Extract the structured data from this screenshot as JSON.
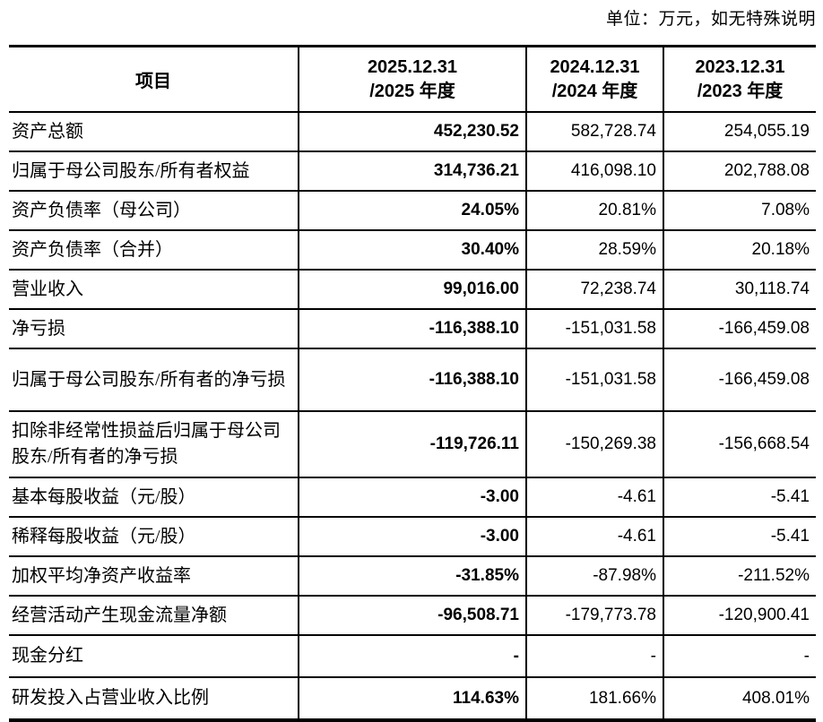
{
  "unit_note": "单位：万元，如无特殊说明",
  "colors": {
    "text": "#000000",
    "background": "#ffffff",
    "border": "#000000"
  },
  "table": {
    "columns": [
      {
        "label": "项目"
      },
      {
        "line1": "2025.12.31",
        "line2": "/2025 年度"
      },
      {
        "line1": "2024.12.31",
        "line2": "/2024 年度"
      },
      {
        "line1": "2023.12.31",
        "line2": "/2023 年度"
      }
    ],
    "rows": [
      {
        "label": "资产总额",
        "values": [
          "452,230.52",
          "582,728.74",
          "254,055.19"
        ]
      },
      {
        "label": "归属于母公司股东/所有者权益",
        "values": [
          "314,736.21",
          "416,098.10",
          "202,788.08"
        ]
      },
      {
        "label": "资产负债率（母公司）",
        "values": [
          "24.05%",
          "20.81%",
          "7.08%"
        ]
      },
      {
        "label": "资产负债率（合并）",
        "values": [
          "30.40%",
          "28.59%",
          "20.18%"
        ]
      },
      {
        "label": "营业收入",
        "values": [
          "99,016.00",
          "72,238.74",
          "30,118.74"
        ]
      },
      {
        "label": "净亏损",
        "values": [
          "-116,388.10",
          "-151,031.58",
          "-166,459.08"
        ]
      },
      {
        "label": "归属于母公司股东/所有者的净亏损",
        "values": [
          "-116,388.10",
          "-151,031.58",
          "-166,459.08"
        ]
      },
      {
        "label": "扣除非经常性损益后归属于母公司股东/所有者的净亏损",
        "values": [
          "-119,726.11",
          "-150,269.38",
          "-156,668.54"
        ]
      },
      {
        "label": "基本每股收益（元/股）",
        "values": [
          "-3.00",
          "-4.61",
          "-5.41"
        ]
      },
      {
        "label": "稀释每股收益（元/股）",
        "values": [
          "-3.00",
          "-4.61",
          "-5.41"
        ]
      },
      {
        "label": "加权平均净资产收益率",
        "values": [
          "-31.85%",
          "-87.98%",
          "-211.52%"
        ]
      },
      {
        "label": "经营活动产生现金流量净额",
        "values": [
          "-96,508.71",
          "-179,773.78",
          "-120,900.41"
        ]
      },
      {
        "label": "现金分红",
        "values": [
          "-",
          "-",
          "-"
        ]
      },
      {
        "label": "研发投入占营业收入比例",
        "values": [
          "114.63%",
          "181.66%",
          "408.01%"
        ]
      }
    ]
  }
}
